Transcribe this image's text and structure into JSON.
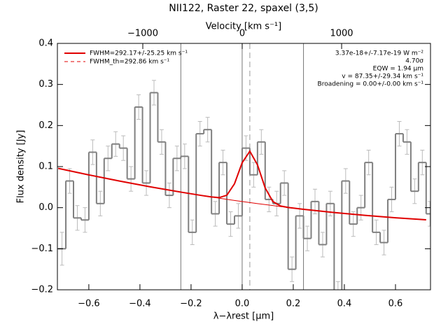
{
  "chart_data": {
    "type": "histogram",
    "title": "NII122, Raster 22, spaxel (3,5)",
    "x_label": "λ−λrest [μm]",
    "y_label": "Flux density [Jy]",
    "x2_label": "Velocity [km s⁻¹]",
    "bins": [
      -0.72,
      -0.69,
      -0.66,
      -0.63,
      -0.6,
      -0.57,
      -0.54,
      -0.51,
      -0.48,
      -0.45,
      -0.42,
      -0.39,
      -0.36,
      -0.33,
      -0.3,
      -0.27,
      -0.24,
      -0.21,
      -0.18,
      -0.15,
      -0.12,
      -0.09,
      -0.06,
      -0.03,
      0,
      0.03,
      0.06,
      0.09,
      0.12,
      0.15,
      0.18,
      0.21,
      0.24,
      0.27,
      0.3,
      0.33,
      0.36,
      0.39,
      0.42,
      0.45,
      0.48,
      0.51,
      0.54,
      0.57,
      0.6,
      0.63,
      0.66,
      0.69,
      0.72,
      0.75
    ],
    "values": [
      -0.1,
      0.065,
      -0.025,
      -0.03,
      0.135,
      0.01,
      0.12,
      0.155,
      0.145,
      0.07,
      0.245,
      0.06,
      0.28,
      0.16,
      0.03,
      0.12,
      0.125,
      -0.06,
      0.18,
      0.19,
      -0.015,
      0.11,
      -0.04,
      -0.02,
      0.145,
      0.08,
      0.16,
      0.02,
      0.01,
      0.06,
      -0.15,
      -0.02,
      -0.075,
      0.015,
      -0.09,
      0.01,
      -0.21,
      0.065,
      -0.04,
      0.0,
      0.11,
      -0.06,
      -0.085,
      0.02,
      0.18,
      0.16,
      0.04,
      0.11,
      -0.015
    ],
    "errors": [
      0.04,
      0.03,
      0.03,
      0.03,
      0.03,
      0.03,
      0.03,
      0.03,
      0.03,
      0.03,
      0.03,
      0.03,
      0.03,
      0.03,
      0.03,
      0.03,
      0.03,
      0.03,
      0.03,
      0.03,
      0.03,
      0.03,
      0.03,
      0.03,
      0.03,
      0.03,
      0.03,
      0.03,
      0.03,
      0.03,
      0.03,
      0.03,
      0.03,
      0.03,
      0.03,
      0.03,
      0.03,
      0.03,
      0.03,
      0.03,
      0.03,
      0.03,
      0.03,
      0.03,
      0.03,
      0.03,
      0.03,
      0.03,
      0.03
    ],
    "color": "#808080",
    "error_color": "#bbbbbb",
    "series": [
      {
        "name": "FWHM=292.17+/-25.25 km s⁻¹",
        "color": "#e00000",
        "style": "solid",
        "x": [
          -0.72,
          -0.6,
          -0.48,
          -0.36,
          -0.24,
          -0.16,
          -0.12,
          -0.09,
          -0.06,
          -0.03,
          0,
          0.03,
          0.06,
          0.09,
          0.12,
          0.15,
          0.18,
          0.24,
          0.36,
          0.48,
          0.6,
          0.72
        ],
        "values": [
          0.0958,
          0.0798,
          0.0649,
          0.0508,
          0.0379,
          0.0298,
          0.026,
          0.0245,
          0.0302,
          0.0582,
          0.1094,
          0.1374,
          0.1043,
          0.0481,
          0.015,
          0.0041,
          0.0005,
          -0.0039,
          -0.0118,
          -0.0187,
          -0.0246,
          -0.0295
        ]
      },
      {
        "name": "FWHM_th=292.86 km s⁻¹",
        "color": "#e00000",
        "style": "dashed"
      }
    ],
    "baseline": {
      "color": "#e00000",
      "x": [
        -0.12,
        -0.09,
        -0.06,
        -0.03,
        0,
        0.03,
        0.06,
        0.09,
        0.12,
        0.15,
        0.18
      ],
      "values": [
        0.0259,
        0.0231,
        0.0203,
        0.0176,
        0.015,
        0.0124,
        0.0099,
        0.0075,
        0.0051,
        0.0027,
        0.0004
      ]
    },
    "vlines": [
      -0.24,
      0,
      0.24
    ],
    "center_line": 0.03,
    "annotations": [
      "3.37e-18+/-7.17e-19 W m⁻²",
      "4.70σ",
      "EQW = 1.94 μm",
      "v = 87.35+/-29.34 km s⁻¹",
      "Broadening = 0.00+/-0.00 km s⁻¹"
    ],
    "xlim": [
      -0.723,
      0.737
    ],
    "ylim": [
      -0.2,
      0.4
    ],
    "x2lim": [
      -1859,
      1894
    ],
    "xticks": [
      {
        "value": -0.6,
        "label": "−0.6"
      },
      {
        "value": -0.4,
        "label": "−0.4"
      },
      {
        "value": -0.2,
        "label": "−0.2"
      },
      {
        "value": 0,
        "label": "0.0"
      },
      {
        "value": 0.2,
        "label": "0.2"
      },
      {
        "value": 0.4,
        "label": "0.4"
      },
      {
        "value": 0.6,
        "label": "0.6"
      }
    ],
    "yticks": [
      {
        "value": -0.2,
        "label": "−0.2"
      },
      {
        "value": -0.1,
        "label": "−0.1"
      },
      {
        "value": 0,
        "label": "0.0"
      },
      {
        "value": 0.1,
        "label": "0.1"
      },
      {
        "value": 0.2,
        "label": "0.2"
      },
      {
        "value": 0.3,
        "label": "0.3"
      },
      {
        "value": 0.4,
        "label": "0.4"
      }
    ],
    "x2ticks": [
      {
        "value": -1000,
        "label": "−1000"
      },
      0,
      1000
    ]
  }
}
